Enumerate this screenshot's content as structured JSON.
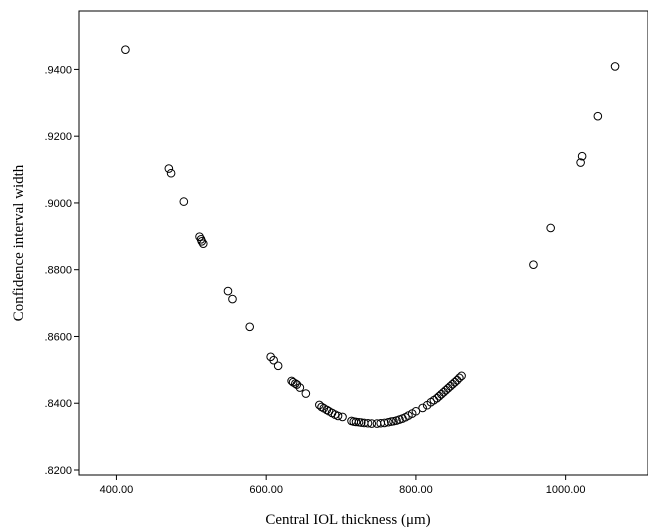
{
  "chart_data": {
    "type": "scatter",
    "title": "",
    "xlabel": "Central IOL thickness (μm)",
    "ylabel": "Confidence interval width",
    "xlim": [
      350,
      1110
    ],
    "ylim": [
      0.8185,
      0.9575
    ],
    "xticks": [
      400,
      600,
      800,
      1000
    ],
    "xtick_labels": [
      "400.00",
      "600.00",
      "800.00",
      "1000.00"
    ],
    "yticks": [
      0.82,
      0.84,
      0.86,
      0.88,
      0.9,
      0.92,
      0.94
    ],
    "ytick_labels": [
      ".8200",
      ".8400",
      ".8600",
      ".8800",
      ".9000",
      ".9200",
      ".9400"
    ],
    "grid": false,
    "legend": "none",
    "marker": "open-circle",
    "points": [
      [
        412,
        0.9459
      ],
      [
        470,
        0.9103
      ],
      [
        473,
        0.9089
      ],
      [
        490,
        0.9004
      ],
      [
        511,
        0.8899
      ],
      [
        513,
        0.8891
      ],
      [
        514,
        0.8885
      ],
      [
        516,
        0.8878
      ],
      [
        549,
        0.8736
      ],
      [
        555,
        0.8712
      ],
      [
        578,
        0.8629
      ],
      [
        606,
        0.8539
      ],
      [
        610,
        0.8529
      ],
      [
        616,
        0.8512
      ],
      [
        634,
        0.8467
      ],
      [
        636,
        0.8463
      ],
      [
        639,
        0.8459
      ],
      [
        641,
        0.8456
      ],
      [
        645,
        0.8447
      ],
      [
        653,
        0.8429
      ],
      [
        671,
        0.8395
      ],
      [
        674,
        0.8389
      ],
      [
        677,
        0.8385
      ],
      [
        681,
        0.838
      ],
      [
        684,
        0.8376
      ],
      [
        688,
        0.8371
      ],
      [
        692,
        0.8366
      ],
      [
        696,
        0.8362
      ],
      [
        702,
        0.8359
      ],
      [
        714,
        0.8347
      ],
      [
        717,
        0.8345
      ],
      [
        720,
        0.8344
      ],
      [
        724,
        0.8343
      ],
      [
        727,
        0.8342
      ],
      [
        731,
        0.8341
      ],
      [
        736,
        0.834
      ],
      [
        741,
        0.8339
      ],
      [
        748,
        0.8339
      ],
      [
        753,
        0.834
      ],
      [
        758,
        0.8341
      ],
      [
        763,
        0.8343
      ],
      [
        767,
        0.8345
      ],
      [
        770,
        0.8346
      ],
      [
        774,
        0.8348
      ],
      [
        778,
        0.8351
      ],
      [
        782,
        0.8354
      ],
      [
        786,
        0.8358
      ],
      [
        790,
        0.8363
      ],
      [
        795,
        0.8369
      ],
      [
        800,
        0.8376
      ],
      [
        809,
        0.8386
      ],
      [
        815,
        0.8394
      ],
      [
        820,
        0.8403
      ],
      [
        824,
        0.8409
      ],
      [
        828,
        0.8415
      ],
      [
        831,
        0.8421
      ],
      [
        834,
        0.8427
      ],
      [
        837,
        0.8433
      ],
      [
        840,
        0.8439
      ],
      [
        843,
        0.8445
      ],
      [
        846,
        0.8451
      ],
      [
        849,
        0.8457
      ],
      [
        852,
        0.8463
      ],
      [
        855,
        0.8469
      ],
      [
        858,
        0.8476
      ],
      [
        861,
        0.8482
      ],
      [
        957,
        0.8815
      ],
      [
        980,
        0.8925
      ],
      [
        1020,
        0.9121
      ],
      [
        1022,
        0.914
      ],
      [
        1043,
        0.926
      ],
      [
        1066,
        0.9409
      ]
    ]
  }
}
